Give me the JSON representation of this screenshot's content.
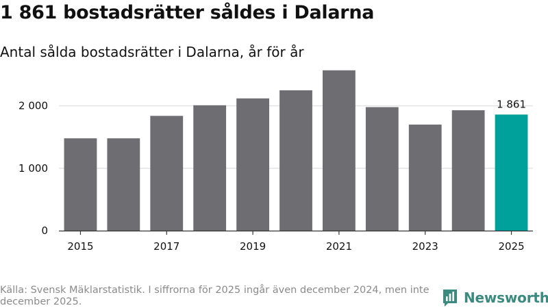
{
  "title": "1 861 bostadsrätter såldes i Dalarna",
  "subtitle": "Antal sålda bostadsrätter i Dalarna, år för år",
  "footer": "Källa: Svensk Mäklarstatistik. I siffrorna för 2025 ingår även december 2024, men inte december 2025.",
  "brand": {
    "name": "Newsworthy",
    "logo_icon": "bar-chart-icon"
  },
  "colors": {
    "bar": "#6e6d72",
    "highlight": "#00a19a",
    "grid": "#dddddd",
    "axis": "#333333",
    "brand": "#3a8a7f"
  },
  "chart_data": {
    "type": "bar",
    "categories": [
      "2015",
      "2016",
      "2017",
      "2018",
      "2019",
      "2020",
      "2021",
      "2022",
      "2023",
      "2024",
      "2025"
    ],
    "values": [
      1480,
      1480,
      1840,
      2010,
      2120,
      2250,
      2570,
      1980,
      1700,
      1930,
      1861
    ],
    "highlight_index": 10,
    "data_labels": [
      {
        "index": 10,
        "text": "1 861"
      }
    ],
    "xticks": [
      "2015",
      "2017",
      "2019",
      "2021",
      "2023",
      "2025"
    ],
    "yticks": [
      {
        "value": 0,
        "label": "0"
      },
      {
        "value": 1000,
        "label": "1 000"
      },
      {
        "value": 2000,
        "label": "2 000"
      }
    ],
    "ylim": [
      0,
      2600
    ],
    "xlabel": "",
    "ylabel": "",
    "grid": true
  }
}
